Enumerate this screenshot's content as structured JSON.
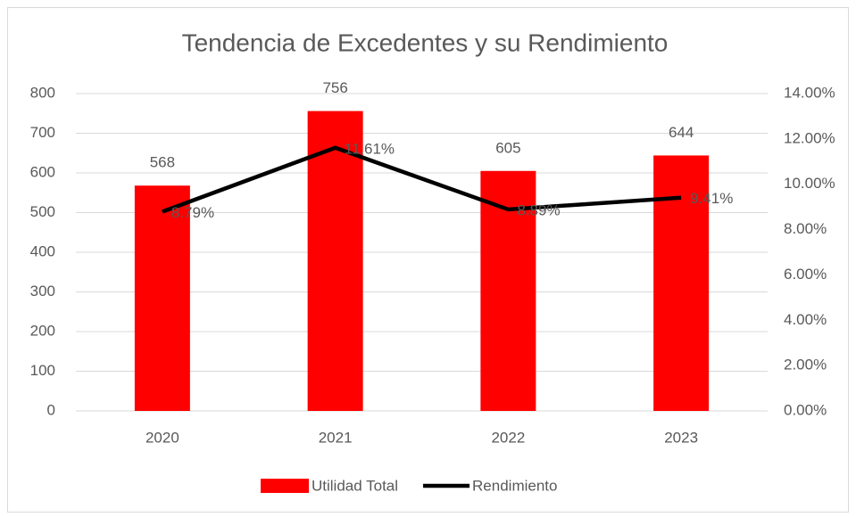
{
  "chart_data": {
    "type": "bar",
    "title": "Tendencia de Excedentes y su Rendimiento",
    "categories": [
      "2020",
      "2021",
      "2022",
      "2023"
    ],
    "series": [
      {
        "name": "Utilidad Total",
        "type": "bar",
        "color": "#ff0000",
        "values": [
          568,
          756,
          605,
          644
        ]
      },
      {
        "name": "Rendimiento",
        "type": "line",
        "axis": "y2",
        "color": "#000000",
        "values": [
          8.79,
          11.61,
          8.89,
          9.41
        ],
        "value_labels": [
          "8.79%",
          "11.61%",
          "8.89%",
          "9.41%"
        ]
      }
    ],
    "ylim": [
      0,
      800
    ],
    "yticks": [
      0,
      100,
      200,
      300,
      400,
      500,
      600,
      700,
      800
    ],
    "y2lim": [
      0,
      14
    ],
    "y2ticks": [
      {
        "value": 0,
        "label": "0.00%"
      },
      {
        "value": 2,
        "label": "2.00%"
      },
      {
        "value": 4,
        "label": "4.00%"
      },
      {
        "value": 6,
        "label": "6.00%"
      },
      {
        "value": 8,
        "label": "8.00%"
      },
      {
        "value": 10,
        "label": "10.00%"
      },
      {
        "value": 12,
        "label": "12.00%"
      },
      {
        "value": 14,
        "label": "14.00%"
      }
    ],
    "grid": true,
    "legend": "bottom"
  }
}
